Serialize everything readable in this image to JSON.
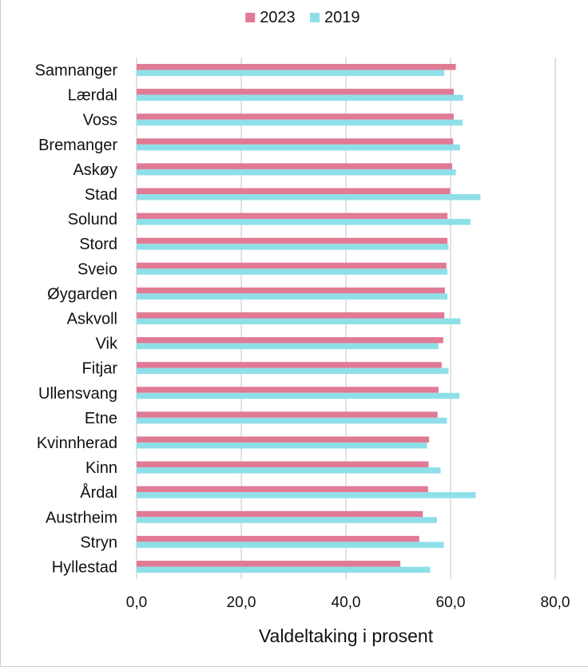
{
  "chart_data": {
    "type": "bar",
    "orientation": "horizontal",
    "title": "",
    "xlabel": "Valdeltaking i prosent",
    "ylabel": "",
    "xlim": [
      0,
      80
    ],
    "x_ticks": [
      "0,0",
      "20,0",
      "40,0",
      "60,0",
      "80,0"
    ],
    "x_tick_values": [
      0,
      20,
      40,
      60,
      80
    ],
    "grid": "vertical",
    "legend_position": "top",
    "categories": [
      "Samnanger",
      "Lærdal",
      "Voss",
      "Bremanger",
      "Askøy",
      "Stad",
      "Solund",
      "Stord",
      "Sveio",
      "Øygarden",
      "Askvoll",
      "Vik",
      "Fitjar",
      "Ullensvang",
      "Etne",
      "Kvinnherad",
      "Kinn",
      "Årdal",
      "Austrheim",
      "Stryn",
      "Hyllestad"
    ],
    "series": [
      {
        "name": "2023",
        "color": "#e07a95",
        "values": [
          61.0,
          60.6,
          60.6,
          60.5,
          60.3,
          59.9,
          59.4,
          59.4,
          59.2,
          58.9,
          58.8,
          58.6,
          58.3,
          57.7,
          57.5,
          55.9,
          55.8,
          55.7,
          54.7,
          54.0,
          50.4
        ]
      },
      {
        "name": "2019",
        "color": "#8fdfe9",
        "values": [
          58.8,
          62.4,
          62.3,
          61.8,
          61.0,
          65.7,
          63.8,
          59.6,
          59.4,
          59.4,
          61.9,
          57.7,
          59.6,
          61.7,
          59.3,
          55.5,
          58.1,
          64.8,
          57.4,
          58.7,
          56.1
        ]
      }
    ]
  }
}
